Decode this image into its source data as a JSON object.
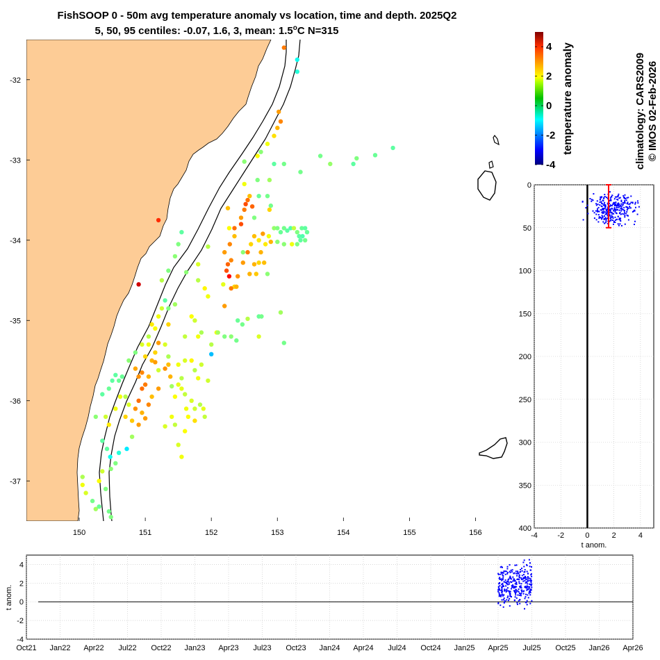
{
  "title": {
    "line1": "FishSOOP 0 - 50m avg temperature anomaly vs location, time and depth. 2025Q2",
    "line2_prefix": "5, 50, 95 centiles: -0.07, 1.6, 3, mean: 1.5",
    "line2_suffix": "C N=315",
    "degree_mark": "o"
  },
  "credits": {
    "climatology": "climatology: CARS2009",
    "copyright": "© IMOS 02-Feb-2026"
  },
  "colors": {
    "land": "#fdcc96",
    "points_blue": "#0000ff",
    "centile_bar": "#ff0000"
  },
  "chart_data": [
    {
      "type": "scatter",
      "name": "map",
      "xlabel": "",
      "ylabel": "",
      "xlim": [
        149.2,
        156.5
      ],
      "ylim": [
        -37.5,
        -31.5
      ],
      "xticks": [
        "150",
        "151",
        "152",
        "153",
        "154",
        "155",
        "156"
      ],
      "yticks": [
        "-32",
        "-33",
        "-34",
        "-35",
        "-36",
        "-37"
      ],
      "colorbar": {
        "label": "temperature anomaly",
        "range": [
          -4,
          5
        ],
        "ticks": [
          "4",
          "2",
          "0",
          "-2",
          "-4"
        ],
        "colormap": "jet"
      },
      "points": [
        [
          153.1,
          -31.6,
          2.8
        ],
        [
          153.3,
          -31.75,
          -0.5
        ],
        [
          153.3,
          -31.9,
          -0.3
        ],
        [
          153.02,
          -32.4,
          2.5
        ],
        [
          153.05,
          -32.52,
          2.7
        ],
        [
          153.0,
          -32.6,
          2.3
        ],
        [
          152.95,
          -32.7,
          1.9
        ],
        [
          152.85,
          -32.8,
          1.5
        ],
        [
          152.75,
          -32.9,
          0.6
        ],
        [
          152.7,
          -32.95,
          1.6
        ],
        [
          152.5,
          -33.02,
          0.6
        ],
        [
          152.5,
          -33.3,
          1.5
        ],
        [
          152.7,
          -33.25,
          0.5
        ],
        [
          152.88,
          -33.25,
          0.8
        ],
        [
          152.95,
          -33.05,
          0.2
        ],
        [
          153.1,
          -33.05,
          0.4
        ],
        [
          153.35,
          -33.15,
          0.4
        ],
        [
          153.65,
          -32.95,
          0.4
        ],
        [
          153.8,
          -33.05,
          0.7
        ],
        [
          154.15,
          -33.05,
          0.2
        ],
        [
          154.2,
          -32.98,
          0.5
        ],
        [
          154.48,
          -32.94,
          0.3
        ],
        [
          154.75,
          -32.85,
          0.2
        ],
        [
          152.25,
          -33.6,
          2.2
        ],
        [
          152.27,
          -33.85,
          1.6
        ],
        [
          152.35,
          -33.95,
          2.2
        ],
        [
          152.45,
          -33.72,
          2.5
        ],
        [
          152.5,
          -33.62,
          2.8
        ],
        [
          152.52,
          -33.55,
          3.2
        ],
        [
          152.55,
          -33.5,
          2.9
        ],
        [
          152.58,
          -33.45,
          2.2
        ],
        [
          152.62,
          -33.58,
          3.0
        ],
        [
          152.65,
          -33.72,
          0.5
        ],
        [
          152.72,
          -33.45,
          0.3
        ],
        [
          152.85,
          -33.45,
          0.4
        ],
        [
          152.9,
          -33.57,
          0.4
        ],
        [
          152.88,
          -33.62,
          2.0
        ],
        [
          152.45,
          -33.8,
          3.2
        ],
        [
          152.35,
          -33.85,
          2.9
        ],
        [
          152.28,
          -34.05,
          2.7
        ],
        [
          152.2,
          -34.15,
          2.5
        ],
        [
          152.25,
          -34.3,
          3.0
        ],
        [
          152.3,
          -34.25,
          2.7
        ],
        [
          152.27,
          -34.45,
          3.8
        ],
        [
          152.23,
          -34.38,
          3.2
        ],
        [
          152.18,
          -34.55,
          1.4
        ],
        [
          152.35,
          -34.58,
          2.0
        ],
        [
          152.4,
          -34.45,
          2.6
        ],
        [
          152.48,
          -34.28,
          2.5
        ],
        [
          152.55,
          -34.15,
          2.8
        ],
        [
          152.6,
          -34.05,
          2.0
        ],
        [
          152.65,
          -33.95,
          2.2
        ],
        [
          152.72,
          -34.0,
          1.8
        ],
        [
          152.75,
          -34.15,
          2.3
        ],
        [
          152.8,
          -34.28,
          2.2
        ],
        [
          152.65,
          -34.3,
          2.3
        ],
        [
          152.58,
          -34.42,
          2.3
        ],
        [
          152.68,
          -34.42,
          2.1
        ],
        [
          152.72,
          -34.28,
          2.0
        ],
        [
          152.82,
          -34.05,
          1.8
        ],
        [
          152.87,
          -33.95,
          1.5
        ],
        [
          152.9,
          -34.02,
          2.3
        ],
        [
          152.78,
          -33.92,
          2.5
        ],
        [
          152.95,
          -33.85,
          0.7
        ],
        [
          153.0,
          -33.85,
          0.5
        ],
        [
          153.05,
          -33.9,
          0.3
        ],
        [
          153.1,
          -33.85,
          0.4
        ],
        [
          153.15,
          -33.88,
          0.2
        ],
        [
          153.2,
          -33.85,
          0.1
        ],
        [
          153.25,
          -33.85,
          1.1
        ],
        [
          153.3,
          -33.9,
          0.5
        ],
        [
          153.33,
          -33.95,
          0.2
        ],
        [
          153.37,
          -33.85,
          0.3
        ],
        [
          153.42,
          -33.85,
          0.2
        ],
        [
          153.45,
          -33.9,
          0.3
        ],
        [
          153.38,
          -33.95,
          0.1
        ],
        [
          153.35,
          -34.0,
          0.2
        ],
        [
          153.42,
          -34.0,
          0.4
        ],
        [
          153.3,
          -34.05,
          0.5
        ],
        [
          153.22,
          -34.05,
          1.5
        ],
        [
          153.1,
          -34.05,
          0.6
        ],
        [
          153.0,
          -34.02,
          0.6
        ],
        [
          152.3,
          -34.6,
          2.8
        ],
        [
          152.38,
          -34.58,
          2.3
        ],
        [
          151.2,
          -33.75,
          3.5
        ],
        [
          150.9,
          -34.55,
          4.3
        ],
        [
          151.55,
          -33.9,
          0.2
        ],
        [
          151.5,
          -34.05,
          0.5
        ],
        [
          151.45,
          -34.2,
          0.6
        ],
        [
          151.35,
          -34.38,
          0.5
        ],
        [
          151.25,
          -34.5,
          1.0
        ],
        [
          151.3,
          -34.75,
          0.2
        ],
        [
          151.35,
          -34.85,
          0.5
        ],
        [
          151.45,
          -34.8,
          0.8
        ],
        [
          151.62,
          -34.4,
          0.6
        ],
        [
          151.8,
          -34.3,
          1.3
        ],
        [
          151.95,
          -34.08,
          1.0
        ],
        [
          151.95,
          -34.7,
          1.5
        ],
        [
          152.2,
          -34.82,
          2.5
        ],
        [
          152.85,
          -34.42,
          0.6
        ],
        [
          152.48,
          -34.15,
          0.6
        ],
        [
          152.08,
          -35.15,
          1.5
        ],
        [
          152.0,
          -35.3,
          1.0
        ],
        [
          152.1,
          -35.15,
          0.8
        ],
        [
          152.2,
          -35.2,
          0.5
        ],
        [
          152.4,
          -35.0,
          0.3
        ],
        [
          152.47,
          -35.05,
          0.4
        ],
        [
          152.55,
          -34.98,
          1.0
        ],
        [
          152.3,
          -35.2,
          0.6
        ],
        [
          152.38,
          -35.25,
          0.4
        ],
        [
          152.72,
          -34.95,
          0.3
        ],
        [
          152.76,
          -34.95,
          0.4
        ],
        [
          152.72,
          -35.2,
          1.3
        ],
        [
          153.05,
          -34.9,
          0.8
        ],
        [
          153.1,
          -35.28,
          0.4
        ],
        [
          151.7,
          -34.95,
          1.6
        ],
        [
          151.75,
          -35.0,
          1.2
        ],
        [
          151.8,
          -35.2,
          1.5
        ],
        [
          151.85,
          -35.15,
          0.9
        ],
        [
          151.6,
          -35.2,
          1.1
        ],
        [
          151.35,
          -35.05,
          2.0
        ],
        [
          151.25,
          -34.85,
          1.2
        ],
        [
          151.2,
          -34.95,
          1.5
        ],
        [
          151.1,
          -35.05,
          1.8
        ],
        [
          151.15,
          -35.1,
          1.6
        ],
        [
          151.05,
          -35.2,
          1.0
        ],
        [
          150.95,
          -35.3,
          1.3
        ],
        [
          151.05,
          -35.3,
          1.5
        ],
        [
          151.15,
          -35.4,
          2.0
        ],
        [
          151.2,
          -35.28,
          2.5
        ],
        [
          151.3,
          -35.3,
          1.3
        ],
        [
          151.35,
          -35.45,
          0.9
        ],
        [
          151.0,
          -35.45,
          2.0
        ],
        [
          151.1,
          -35.5,
          2.3
        ],
        [
          151.15,
          -35.52,
          2.5
        ],
        [
          151.2,
          -35.62,
          1.2
        ],
        [
          151.3,
          -35.6,
          2.6
        ],
        [
          151.35,
          -35.55,
          2.2
        ],
        [
          151.38,
          -35.7,
          2.3
        ],
        [
          151.5,
          -35.55,
          1.5
        ],
        [
          151.6,
          -35.5,
          1.3
        ],
        [
          151.7,
          -35.5,
          1.7
        ],
        [
          151.75,
          -35.62,
          1.0
        ],
        [
          151.8,
          -35.72,
          1.5
        ],
        [
          151.85,
          -35.55,
          1.2
        ],
        [
          151.55,
          -35.72,
          1.0
        ],
        [
          151.4,
          -35.82,
          0.8
        ],
        [
          151.45,
          -35.95,
          1.6
        ],
        [
          151.5,
          -35.8,
          1.4
        ],
        [
          151.6,
          -35.92,
          1.1
        ],
        [
          151.7,
          -36.0,
          1.3
        ],
        [
          151.75,
          -36.1,
          1.2
        ],
        [
          151.83,
          -36.05,
          1.0
        ],
        [
          151.88,
          -36.1,
          1.4
        ],
        [
          151.62,
          -36.1,
          1.5
        ],
        [
          151.4,
          -36.2,
          1.5
        ],
        [
          151.3,
          -36.32,
          1.3
        ],
        [
          151.45,
          -36.3,
          1.1
        ],
        [
          151.6,
          -36.38,
          1.6
        ],
        [
          151.2,
          -35.85,
          2.5
        ],
        [
          151.05,
          -35.7,
          2.3
        ],
        [
          150.95,
          -35.65,
          2.7
        ],
        [
          150.85,
          -35.6,
          2.4
        ],
        [
          150.9,
          -35.7,
          2.6
        ],
        [
          151.0,
          -35.8,
          2.8
        ],
        [
          150.95,
          -35.85,
          2.9
        ],
        [
          151.1,
          -35.95,
          2.2
        ],
        [
          151.05,
          -36.05,
          2.7
        ],
        [
          150.9,
          -36.0,
          2.9
        ],
        [
          150.85,
          -36.1,
          2.6
        ],
        [
          150.95,
          -36.15,
          2.3
        ],
        [
          151.0,
          -36.22,
          2.5
        ],
        [
          150.9,
          -36.3,
          2.5
        ],
        [
          150.8,
          -36.25,
          2.1
        ],
        [
          150.7,
          -36.2,
          2.0
        ],
        [
          150.75,
          -36.05,
          1.3
        ],
        [
          150.7,
          -35.95,
          1.0
        ],
        [
          150.62,
          -35.95,
          1.5
        ],
        [
          150.6,
          -35.75,
          0.3
        ],
        [
          150.5,
          -35.75,
          0.2
        ],
        [
          150.45,
          -35.85,
          0.3
        ],
        [
          150.35,
          -35.92,
          0.2
        ],
        [
          150.55,
          -36.1,
          1.5
        ],
        [
          150.4,
          -36.2,
          1.2
        ],
        [
          150.45,
          -36.3,
          1.8
        ],
        [
          150.35,
          -36.5,
          0.2
        ],
        [
          150.42,
          -36.6,
          0.2
        ],
        [
          150.47,
          -36.7,
          -0.5
        ],
        [
          150.6,
          -36.65,
          -0.3
        ],
        [
          150.72,
          -36.6,
          -0.8
        ],
        [
          150.55,
          -36.78,
          0.5
        ],
        [
          150.35,
          -36.88,
          1.2
        ],
        [
          150.48,
          -36.85,
          0.6
        ],
        [
          150.3,
          -37.0,
          1.6
        ],
        [
          150.4,
          -37.1,
          0.5
        ],
        [
          150.05,
          -36.95,
          0.9
        ],
        [
          150.05,
          -37.05,
          1.5
        ],
        [
          150.1,
          -37.15,
          1.3
        ],
        [
          150.2,
          -37.25,
          0.4
        ],
        [
          150.25,
          -37.35,
          0.8
        ],
        [
          150.45,
          -37.38,
          0.4
        ],
        [
          150.48,
          -37.45,
          0.5
        ],
        [
          150.3,
          -37.32,
          0.3
        ],
        [
          150.8,
          -36.45,
          0.8
        ],
        [
          150.25,
          -36.2,
          0.6
        ],
        [
          151.55,
          -35.85,
          1.4
        ],
        [
          151.65,
          -36.2,
          1.6
        ],
        [
          151.75,
          -36.25,
          1.9
        ],
        [
          151.5,
          -36.55,
          1.3
        ],
        [
          151.55,
          -36.7,
          1.5
        ],
        [
          151.9,
          -36.2,
          1.1
        ],
        [
          151.95,
          -35.75,
          1.2
        ],
        [
          152.0,
          -35.42,
          -1.2
        ],
        [
          151.9,
          -34.6,
          1.7
        ],
        [
          151.8,
          -34.5,
          1.0
        ],
        [
          150.75,
          -35.5,
          0.6
        ],
        [
          150.85,
          -35.4,
          0.5
        ],
        [
          150.65,
          -35.7,
          0.3
        ],
        [
          150.55,
          -35.68,
          0.2
        ]
      ]
    },
    {
      "type": "scatter",
      "name": "depth_profile",
      "xlabel": "t anom.",
      "ylabel": "",
      "xlim": [
        -4,
        5
      ],
      "ylim": [
        0,
        400
      ],
      "y_reversed": true,
      "xticks": [
        "-4",
        "-2",
        "0",
        "2",
        "4"
      ],
      "yticks": [
        "0",
        "50",
        "100",
        "150",
        "200",
        "250",
        "300",
        "350",
        "400"
      ],
      "mean_anomaly": 1.5,
      "centile_bar": {
        "x": 1.6,
        "depth_range": [
          0,
          50
        ]
      },
      "cloud": {
        "x_range": [
          -0.7,
          4.4
        ],
        "depth_range": [
          8,
          50
        ],
        "n": 315
      }
    },
    {
      "type": "scatter",
      "name": "time_series",
      "xlabel": "",
      "ylabel": "t anom.",
      "ylim": [
        -4,
        5
      ],
      "yticks": [
        "4",
        "2",
        "0",
        "-2",
        "-4"
      ],
      "xticks": [
        "Oct21",
        "Jan22",
        "Apr22",
        "Jul22",
        "Oct22",
        "Jan23",
        "Apr23",
        "Jul23",
        "Oct23",
        "Jan24",
        "Apr24",
        "Jul24",
        "Oct24",
        "Jan25",
        "Apr25",
        "Jul25",
        "Oct25",
        "Jan26",
        "Apr26"
      ],
      "cloud": {
        "time_range": [
          "Apr25",
          "Jul25"
        ],
        "value_range": [
          -1.5,
          4.5
        ],
        "n": 315
      }
    }
  ]
}
